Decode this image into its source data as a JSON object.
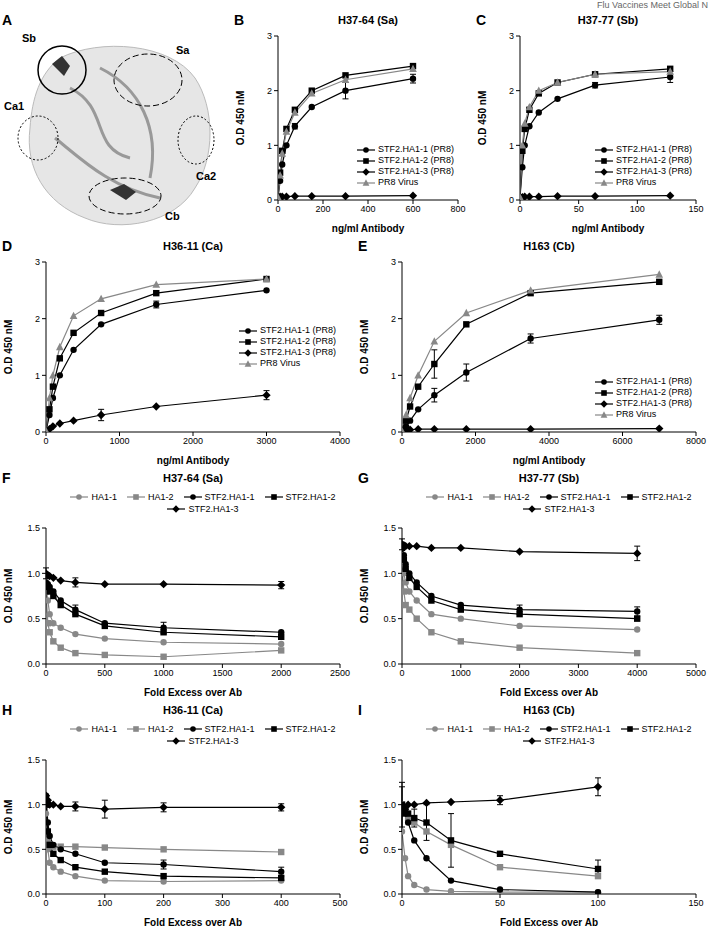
{
  "page_header": "Flu Vaccines Meet Global N",
  "panel_a": {
    "panel": "A",
    "sites": [
      "Sb",
      "Sa",
      "Ca1",
      "Ca2",
      "Cb"
    ]
  },
  "chart_data": [
    {
      "panel": "B",
      "type": "line",
      "title": "H37-64 (Sa)",
      "x_label": "ng/ml Antibody",
      "y_label": "O.D 450 nM",
      "legend": "lower right",
      "x": [
        0,
        9.4,
        18.75,
        37.5,
        75,
        150,
        300,
        600
      ],
      "xlim": [
        0,
        800
      ],
      "xticks": [
        0,
        200,
        400,
        600,
        800
      ],
      "ylim": [
        0,
        3
      ],
      "yticks": [
        0,
        1,
        2,
        3
      ],
      "series": [
        {
          "name": "STF2.HA1-1 (PR8)",
          "color": "#000000",
          "marker": "circle",
          "values": [
            0.05,
            0.35,
            0.65,
            1.0,
            1.35,
            1.7,
            2.0,
            2.22
          ],
          "errors": [
            null,
            null,
            null,
            null,
            0.05,
            null,
            0.15,
            0.08
          ]
        },
        {
          "name": "STF2.HA1-2 (PR8)",
          "color": "#000000",
          "marker": "square",
          "values": [
            0.05,
            0.5,
            0.9,
            1.3,
            1.65,
            2.0,
            2.28,
            2.45
          ]
        },
        {
          "name": "STF2.HA1-3 (PR8)",
          "color": "#000000",
          "marker": "diamond",
          "values": [
            0.05,
            0.06,
            0.06,
            0.06,
            0.07,
            0.07,
            0.07,
            0.08
          ]
        },
        {
          "name": "PR8 Virus",
          "color": "#888888",
          "marker": "triangle",
          "values": [
            0.05,
            0.45,
            0.85,
            1.25,
            1.6,
            1.95,
            2.2,
            2.4
          ]
        }
      ]
    },
    {
      "panel": "C",
      "type": "line",
      "title": "H37-77 (Sb)",
      "x_label": "ng/ml Antibody",
      "y_label": "O.D 450 nM",
      "legend": "lower right",
      "x": [
        0,
        2,
        4,
        8,
        16,
        32,
        64,
        128
      ],
      "xlim": [
        0,
        150
      ],
      "xticks": [
        0,
        50,
        100,
        150
      ],
      "ylim": [
        0,
        3
      ],
      "yticks": [
        0,
        1,
        2,
        3
      ],
      "series": [
        {
          "name": "STF2.HA1-1 (PR8)",
          "color": "#000000",
          "marker": "circle",
          "values": [
            0.05,
            0.6,
            1.0,
            1.35,
            1.6,
            1.85,
            2.1,
            2.25
          ],
          "errors": [
            null,
            null,
            null,
            null,
            null,
            null,
            0.05,
            0.1
          ]
        },
        {
          "name": "STF2.HA1-2 (PR8)",
          "color": "#000000",
          "marker": "square",
          "values": [
            0.05,
            0.9,
            1.3,
            1.65,
            1.95,
            2.15,
            2.3,
            2.4
          ]
        },
        {
          "name": "STF2.HA1-3 (PR8)",
          "color": "#000000",
          "marker": "diamond",
          "values": [
            0.05,
            0.05,
            0.06,
            0.06,
            0.06,
            0.07,
            0.07,
            0.08
          ]
        },
        {
          "name": "PR8 Virus",
          "color": "#888888",
          "marker": "triangle",
          "values": [
            0.05,
            1.0,
            1.4,
            1.7,
            2.0,
            2.15,
            2.3,
            2.35
          ]
        }
      ]
    },
    {
      "panel": "D",
      "type": "line",
      "title": "H36-11 (Ca)",
      "x_label": "ng/ml Antibody",
      "y_label": "O.D 450 nM",
      "legend": "center right",
      "x": [
        0,
        47,
        94,
        188,
        375,
        750,
        1500,
        3000
      ],
      "xlim": [
        0,
        4000
      ],
      "xticks": [
        0,
        1000,
        2000,
        3000,
        4000
      ],
      "ylim": [
        0,
        3
      ],
      "yticks": [
        0,
        1,
        2,
        3
      ],
      "series": [
        {
          "name": "STF2.HA1-1 (PR8)",
          "color": "#000000",
          "marker": "circle",
          "values": [
            0.02,
            0.3,
            0.6,
            1.0,
            1.45,
            1.9,
            2.25,
            2.5
          ],
          "errors": [
            null,
            null,
            null,
            null,
            null,
            null,
            0.06,
            null
          ]
        },
        {
          "name": "STF2.HA1-2 (PR8)",
          "color": "#000000",
          "marker": "square",
          "values": [
            0.02,
            0.4,
            0.8,
            1.3,
            1.75,
            2.1,
            2.45,
            2.7
          ]
        },
        {
          "name": "STF2.HA1-3 (PR8)",
          "color": "#000000",
          "marker": "diamond",
          "values": [
            0.0,
            0.05,
            0.1,
            0.15,
            0.2,
            0.3,
            0.45,
            0.65
          ],
          "errors": [
            null,
            null,
            null,
            null,
            null,
            0.1,
            null,
            0.08
          ]
        },
        {
          "name": "PR8 Virus",
          "color": "#888888",
          "marker": "triangle",
          "values": [
            0.02,
            0.6,
            1.0,
            1.5,
            2.05,
            2.35,
            2.6,
            2.7
          ]
        }
      ]
    },
    {
      "panel": "E",
      "type": "line",
      "title": "H163 (Cb)",
      "x_label": "ng/ml Antibody",
      "y_label": "O.D 450 nM",
      "legend": "lower right",
      "x": [
        0,
        110,
        220,
        440,
        880,
        1750,
        3500,
        7000
      ],
      "xlim": [
        0,
        8000
      ],
      "xticks": [
        0,
        2000,
        4000,
        6000,
        8000
      ],
      "ylim": [
        0,
        3
      ],
      "yticks": [
        0,
        1,
        2,
        3
      ],
      "series": [
        {
          "name": "STF2.HA1-1 (PR8)",
          "color": "#000000",
          "marker": "circle",
          "values": [
            0.02,
            0.1,
            0.2,
            0.4,
            0.65,
            1.05,
            1.65,
            1.98
          ],
          "errors": [
            null,
            null,
            null,
            null,
            0.12,
            0.15,
            0.08,
            0.08
          ]
        },
        {
          "name": "STF2.HA1-2 (PR8)",
          "color": "#000000",
          "marker": "square",
          "values": [
            0.02,
            0.2,
            0.45,
            0.8,
            1.2,
            1.9,
            2.45,
            2.65
          ],
          "errors": [
            null,
            null,
            null,
            null,
            0.25,
            null,
            null,
            null
          ]
        },
        {
          "name": "STF2.HA1-3 (PR8)",
          "color": "#000000",
          "marker": "diamond",
          "values": [
            0.02,
            0.04,
            0.04,
            0.05,
            0.05,
            0.05,
            0.05,
            0.06
          ]
        },
        {
          "name": "PR8 Virus",
          "color": "#888888",
          "marker": "triangle",
          "values": [
            0.02,
            0.3,
            0.6,
            1.0,
            1.6,
            2.1,
            2.5,
            2.78
          ]
        }
      ]
    },
    {
      "panel": "F",
      "type": "line",
      "title": "H37-64 (Sa)",
      "x_label": "Fold Excess over Ab",
      "y_label": "O.D 450 nM",
      "legend": "top",
      "x": [
        0,
        15.6,
        31.25,
        62.5,
        125,
        250,
        500,
        1000,
        2000
      ],
      "xlim": [
        0,
        2500
      ],
      "xticks": [
        0,
        500,
        1000,
        1500,
        2000,
        2500
      ],
      "ylim": [
        0,
        1.5
      ],
      "yticks": [
        {
          "value": 0,
          "label": "0.0"
        },
        {
          "value": 0.5,
          "label": "0.5"
        },
        {
          "value": 1,
          "label": "1.0"
        },
        {
          "value": 1.5,
          "label": "1.5"
        }
      ],
      "series": [
        {
          "name": "HA1-1",
          "color": "#888888",
          "marker": "circle",
          "values": [
            0.85,
            0.7,
            0.55,
            0.45,
            0.4,
            0.33,
            0.28,
            0.24,
            0.22
          ]
        },
        {
          "name": "HA1-2",
          "color": "#888888",
          "marker": "square",
          "values": [
            0.8,
            0.45,
            0.35,
            0.25,
            0.18,
            0.12,
            0.1,
            0.08,
            0.15
          ]
        },
        {
          "name": "STF2.HA1-1",
          "color": "#000000",
          "marker": "circle",
          "values": [
            0.9,
            0.88,
            0.85,
            0.8,
            0.7,
            0.6,
            0.45,
            0.4,
            0.35
          ],
          "errors": [
            null,
            null,
            null,
            null,
            null,
            0.05,
            null,
            0.06,
            null
          ]
        },
        {
          "name": "STF2.HA1-2",
          "color": "#000000",
          "marker": "square",
          "values": [
            0.88,
            0.85,
            0.8,
            0.75,
            0.65,
            0.55,
            0.42,
            0.35,
            0.3
          ]
        },
        {
          "name": "STF2.HA1-3",
          "color": "#000000",
          "marker": "diamond",
          "values": [
            1.0,
            0.98,
            0.97,
            0.95,
            0.92,
            0.9,
            0.88,
            0.88,
            0.87
          ],
          "errors": [
            0.06,
            null,
            null,
            null,
            null,
            0.05,
            null,
            null,
            0.04
          ]
        }
      ]
    },
    {
      "panel": "G",
      "type": "line",
      "title": "H37-77 (Sb)",
      "x_label": "Fold Excess over Ab",
      "y_label": "O.D 450 nM",
      "legend": "top",
      "x": [
        0,
        31.25,
        62.5,
        125,
        250,
        500,
        1000,
        2000,
        4000
      ],
      "xlim": [
        0,
        5000
      ],
      "xticks": [
        0,
        1000,
        2000,
        3000,
        4000,
        5000
      ],
      "ylim": [
        0,
        1.5
      ],
      "yticks": [
        {
          "value": 0,
          "label": "0.0"
        },
        {
          "value": 0.5,
          "label": "0.5"
        },
        {
          "value": 1,
          "label": "1.0"
        },
        {
          "value": 1.5,
          "label": "1.5"
        }
      ],
      "series": [
        {
          "name": "HA1-1",
          "color": "#888888",
          "marker": "circle",
          "values": [
            1.2,
            1.0,
            0.9,
            0.8,
            0.7,
            0.55,
            0.5,
            0.42,
            0.38
          ]
        },
        {
          "name": "HA1-2",
          "color": "#888888",
          "marker": "square",
          "values": [
            1.1,
            0.8,
            0.65,
            0.6,
            0.5,
            0.35,
            0.25,
            0.18,
            0.12
          ]
        },
        {
          "name": "STF2.HA1-1",
          "color": "#000000",
          "marker": "circle",
          "values": [
            1.3,
            1.2,
            1.1,
            1.0,
            0.9,
            0.75,
            0.65,
            0.6,
            0.58
          ],
          "errors": [
            null,
            null,
            null,
            null,
            null,
            null,
            null,
            0.05,
            0.05
          ]
        },
        {
          "name": "STF2.HA1-2",
          "color": "#000000",
          "marker": "square",
          "values": [
            1.28,
            1.15,
            1.05,
            0.95,
            0.85,
            0.7,
            0.6,
            0.55,
            0.5
          ]
        },
        {
          "name": "STF2.HA1-3",
          "color": "#000000",
          "marker": "diamond",
          "values": [
            1.32,
            1.31,
            1.3,
            1.3,
            1.3,
            1.28,
            1.28,
            1.24,
            1.22
          ],
          "errors": [
            0.06,
            null,
            null,
            null,
            null,
            null,
            null,
            null,
            0.08
          ]
        }
      ]
    },
    {
      "panel": "H",
      "type": "line",
      "title": "H36-11 (Ca)",
      "x_label": "Fold Excess over Ab",
      "y_label": "O.D 450 nM",
      "legend": "top",
      "x": [
        0,
        3.1,
        6.25,
        12.5,
        25,
        50,
        100,
        200,
        400
      ],
      "xlim": [
        0,
        500
      ],
      "xticks": [
        0,
        100,
        200,
        300,
        400,
        500
      ],
      "ylim": [
        0,
        1.5
      ],
      "yticks": [
        {
          "value": 0,
          "label": "0.0"
        },
        {
          "value": 0.5,
          "label": "0.5"
        },
        {
          "value": 1,
          "label": "1.0"
        },
        {
          "value": 1.5,
          "label": "1.5"
        }
      ],
      "series": [
        {
          "name": "HA1-1",
          "color": "#888888",
          "marker": "circle",
          "values": [
            0.9,
            0.5,
            0.35,
            0.3,
            0.25,
            0.2,
            0.15,
            0.14,
            0.15
          ]
        },
        {
          "name": "HA1-2",
          "color": "#888888",
          "marker": "square",
          "values": [
            1.0,
            0.6,
            0.55,
            0.53,
            0.53,
            0.53,
            0.52,
            0.5,
            0.47
          ]
        },
        {
          "name": "STF2.HA1-1",
          "color": "#000000",
          "marker": "circle",
          "values": [
            1.1,
            0.8,
            0.65,
            0.55,
            0.5,
            0.45,
            0.35,
            0.33,
            0.25
          ],
          "errors": [
            null,
            null,
            null,
            null,
            null,
            null,
            null,
            0.05,
            0.05
          ]
        },
        {
          "name": "STF2.HA1-2",
          "color": "#000000",
          "marker": "square",
          "values": [
            1.0,
            0.7,
            0.55,
            0.45,
            0.38,
            0.3,
            0.25,
            0.2,
            0.18
          ]
        },
        {
          "name": "STF2.HA1-3",
          "color": "#000000",
          "marker": "diamond",
          "values": [
            1.1,
            1.05,
            1.0,
            1.0,
            0.98,
            0.98,
            0.95,
            0.97,
            0.97
          ],
          "errors": [
            null,
            null,
            null,
            null,
            null,
            0.05,
            0.1,
            0.05,
            0.04
          ]
        }
      ]
    },
    {
      "panel": "I",
      "type": "line",
      "title": "H163 (Cb)",
      "x_label": "Fold Excess over Ab",
      "y_label": "O.D 450 nM",
      "legend": "top",
      "x": [
        0,
        1.56,
        3.125,
        6.25,
        12.5,
        25,
        50,
        100
      ],
      "xlim": [
        0,
        150
      ],
      "xticks": [
        0,
        50,
        100,
        150
      ],
      "ylim": [
        0,
        1.5
      ],
      "yticks": [
        {
          "value": 0,
          "label": "0.0"
        },
        {
          "value": 0.5,
          "label": "0.5"
        },
        {
          "value": 1,
          "label": "1.0"
        },
        {
          "value": 1.5,
          "label": "1.5"
        }
      ],
      "series": [
        {
          "name": "HA1-1",
          "color": "#888888",
          "marker": "circle",
          "values": [
            0.7,
            0.4,
            0.2,
            0.1,
            0.05,
            0.03,
            0.02,
            0.02
          ]
        },
        {
          "name": "HA1-2",
          "color": "#888888",
          "marker": "square",
          "values": [
            1.0,
            0.9,
            0.85,
            0.8,
            0.7,
            0.55,
            0.3,
            0.2
          ]
        },
        {
          "name": "STF2.HA1-1",
          "color": "#000000",
          "marker": "circle",
          "values": [
            0.95,
            0.9,
            0.8,
            0.6,
            0.4,
            0.15,
            0.05,
            0.02
          ],
          "errors": [
            0.25,
            null,
            null,
            null,
            null,
            null,
            null,
            null
          ]
        },
        {
          "name": "STF2.HA1-2",
          "color": "#000000",
          "marker": "square",
          "values": [
            1.0,
            0.95,
            0.9,
            0.85,
            0.8,
            0.6,
            0.45,
            0.28
          ],
          "errors": [
            0.25,
            null,
            null,
            0.1,
            0.2,
            0.3,
            null,
            0.1
          ]
        },
        {
          "name": "STF2.HA1-3",
          "color": "#000000",
          "marker": "diamond",
          "values": [
            0.9,
            0.95,
            1.0,
            1.0,
            1.02,
            1.03,
            1.05,
            1.2
          ],
          "errors": [
            null,
            null,
            null,
            null,
            null,
            null,
            0.05,
            0.1
          ]
        }
      ]
    }
  ]
}
